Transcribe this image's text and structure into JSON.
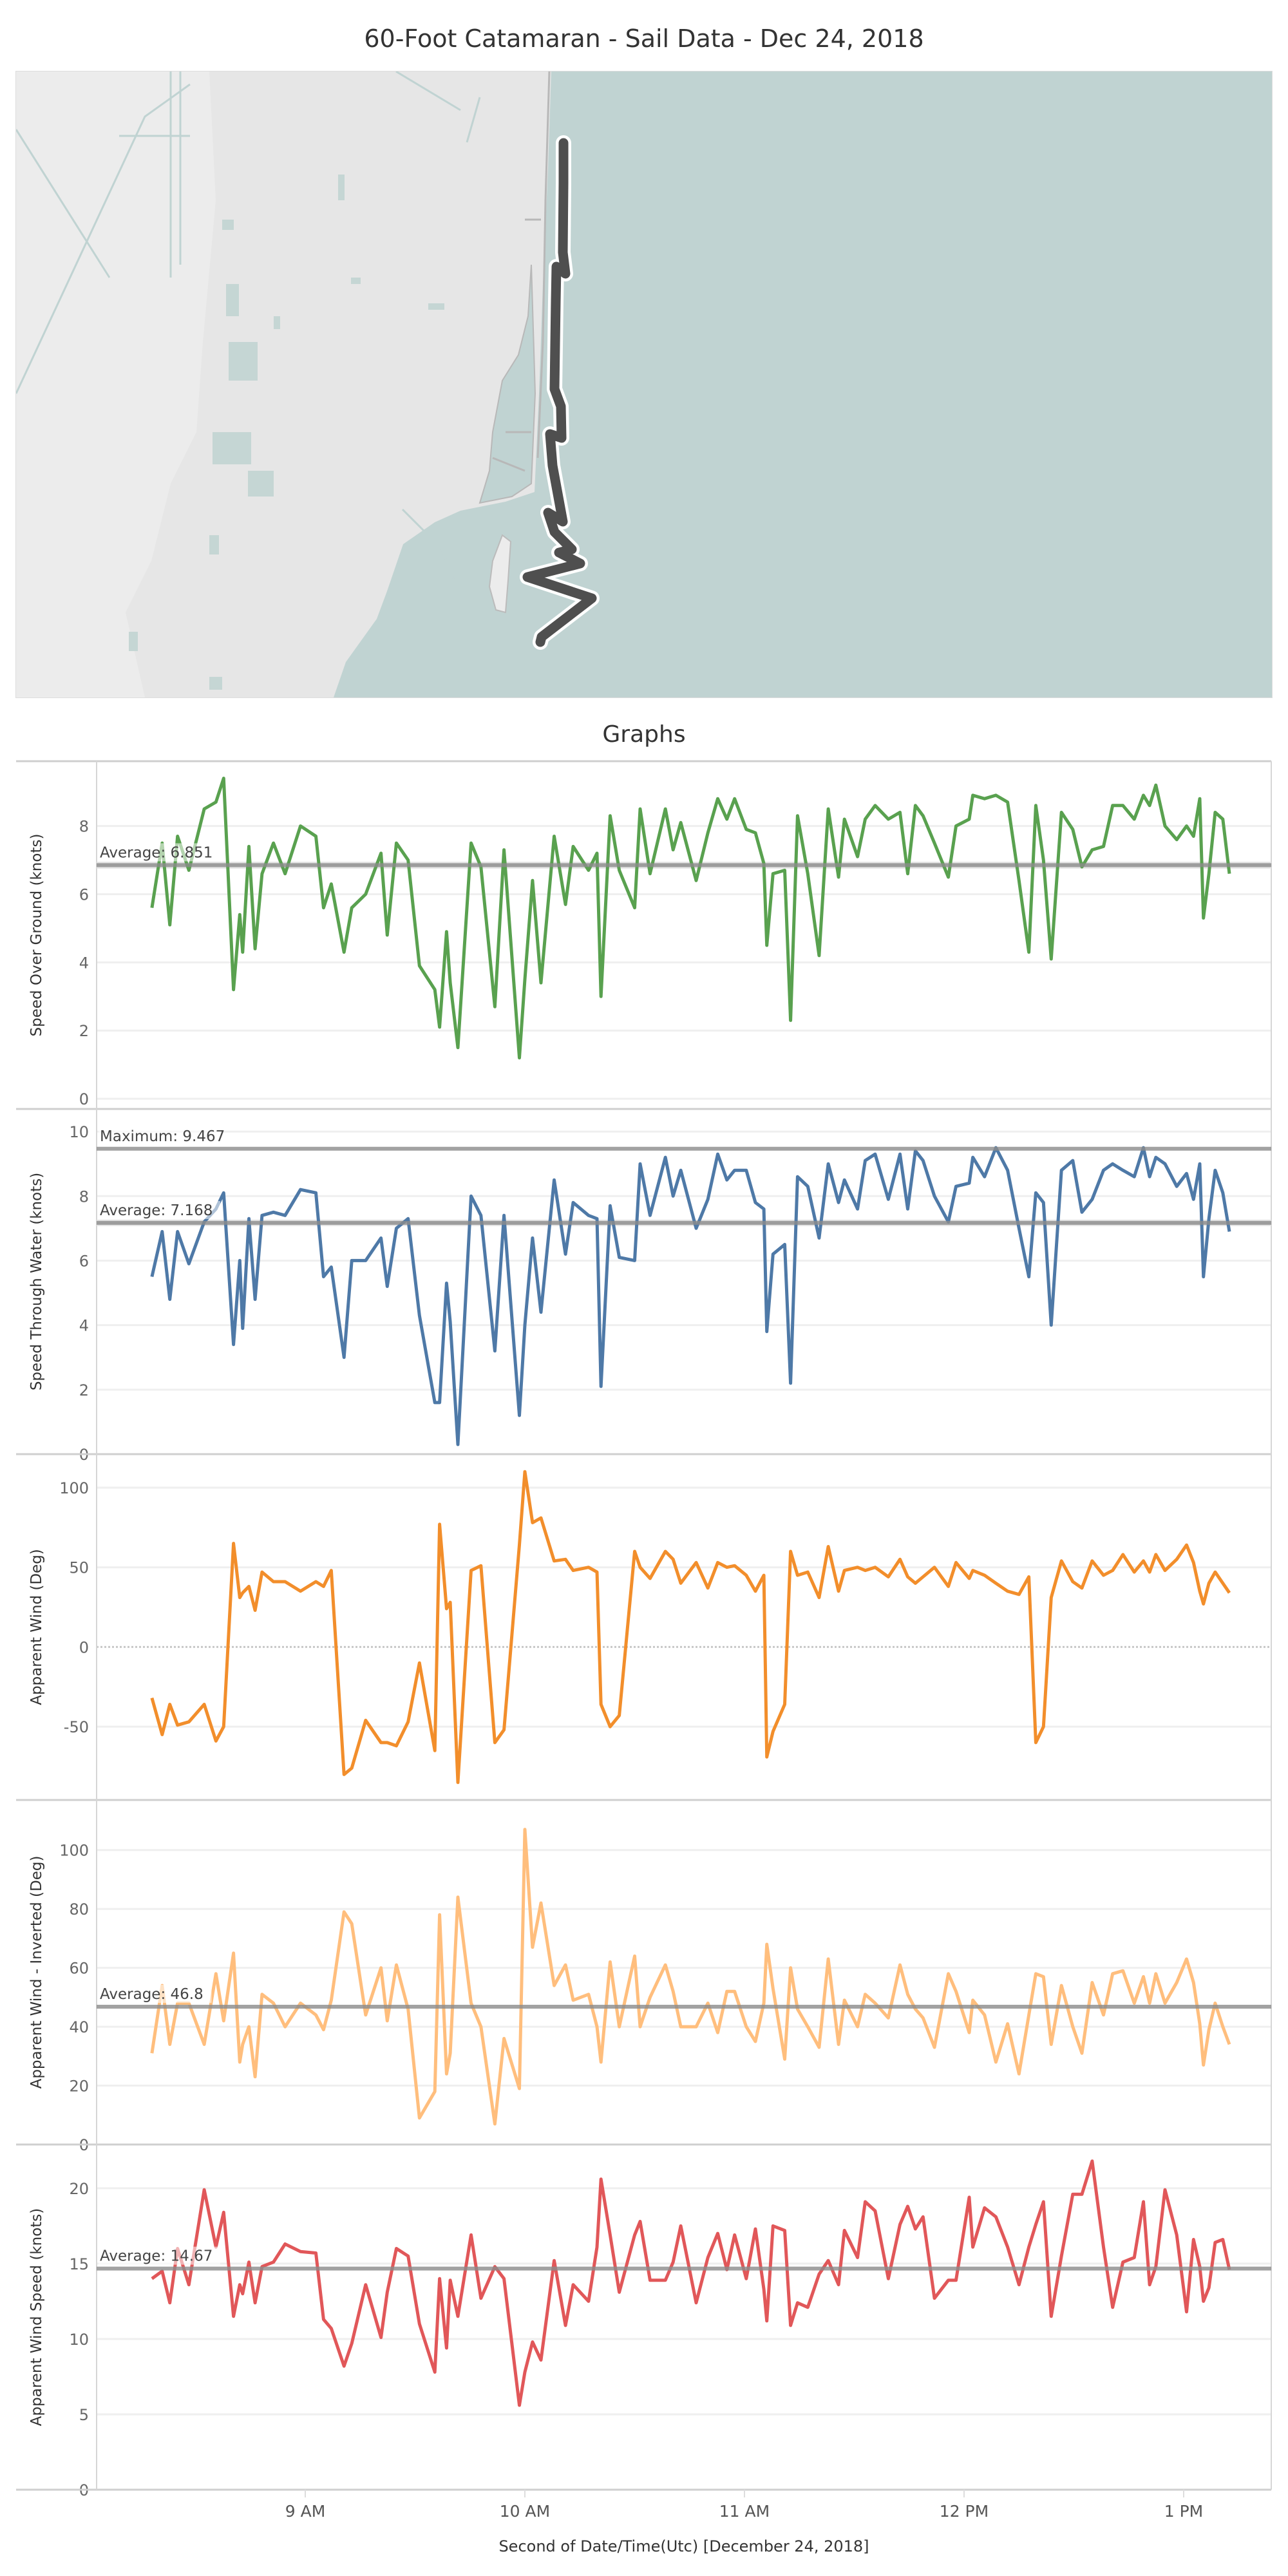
{
  "title": "60-Foot Catamaran - Sail Data - Dec 24, 2018",
  "section_title": "Graphs",
  "map": {
    "track_color": "#4f4f4f",
    "water_color": "#c0d3d2",
    "land_color": "#e6e6e6"
  },
  "x_axis": {
    "title": "Second of Date/Time(Utc) [December 24, 2018]",
    "ticks": [
      {
        "label": "9 AM",
        "minute": 60
      },
      {
        "label": "10 AM",
        "minute": 120
      },
      {
        "label": "11 AM",
        "minute": 180
      },
      {
        "label": "12 PM",
        "minute": 240
      },
      {
        "label": "1 PM",
        "minute": 300
      }
    ],
    "origin": "minutes after 8:00 AM",
    "range": [
      0,
      320
    ]
  },
  "chart_data": [
    {
      "type": "line",
      "ylabel": "Speed Over Ground (knots)",
      "color": "#59a14f",
      "ylim": [
        -0.3,
        9.9
      ],
      "yticks": [
        0,
        2,
        4,
        6,
        8
      ],
      "reference_lines": [
        {
          "label": "Average: 6.851",
          "value": 6.851,
          "band": [
            6.75,
            6.95
          ]
        }
      ],
      "x": [
        18.1,
        20.9,
        23.0,
        25.1,
        28.2,
        32.4,
        35.6,
        37.7,
        40.4,
        42.1,
        42.9,
        44.6,
        46.3,
        48.2,
        51.3,
        54.5,
        58.7,
        62.9,
        65.0,
        67.1,
        70.6,
        72.7,
        76.5,
        80.7,
        82.4,
        84.9,
        88.1,
        91.2,
        95.4,
        96.7,
        98.6,
        99.6,
        101.7,
        105.3,
        108.0,
        111.8,
        114.3,
        118.5,
        120.0,
        122.1,
        124.4,
        128.0,
        131.1,
        133.2,
        137.4,
        139.7,
        140.8,
        143.3,
        145.8,
        150.0,
        151.5,
        154.2,
        158.4,
        160.5,
        162.6,
        166.8,
        170.0,
        172.7,
        175.2,
        177.3,
        180.5,
        183.0,
        185.3,
        186.1,
        187.8,
        191.0,
        192.6,
        194.5,
        197.3,
        200.4,
        202.9,
        205.7,
        207.3,
        210.9,
        213.0,
        215.7,
        219.3,
        222.5,
        224.6,
        226.7,
        228.8,
        231.9,
        235.7,
        237.8,
        241.4,
        242.4,
        245.6,
        248.7,
        251.9,
        255.0,
        257.7,
        259.6,
        261.7,
        263.8,
        266.6,
        269.7,
        272.2,
        275.0,
        278.1,
        280.6,
        283.4,
        286.5,
        289.0,
        290.7,
        292.4,
        294.9,
        298.1,
        300.8,
        302.7,
        304.4,
        305.4,
        306.9,
        308.6,
        310.7,
        312.5
      ],
      "values": [
        5.6,
        7.5,
        5.1,
        7.7,
        6.7,
        8.5,
        8.7,
        9.4,
        3.2,
        5.4,
        4.3,
        7.4,
        4.4,
        6.6,
        7.5,
        6.6,
        8.0,
        7.7,
        5.6,
        6.3,
        4.3,
        5.6,
        6.0,
        7.2,
        4.8,
        7.5,
        7.0,
        3.9,
        3.2,
        2.1,
        4.9,
        3.4,
        1.5,
        7.5,
        6.8,
        2.7,
        7.3,
        1.2,
        3.5,
        6.4,
        3.4,
        7.7,
        5.7,
        7.4,
        6.7,
        7.2,
        3.0,
        8.3,
        6.7,
        5.6,
        8.5,
        6.6,
        8.5,
        7.3,
        8.1,
        6.4,
        7.8,
        8.8,
        8.2,
        8.8,
        7.9,
        7.8,
        6.9,
        4.5,
        6.6,
        6.7,
        2.3,
        8.3,
        6.6,
        4.2,
        8.5,
        6.5,
        8.2,
        7.1,
        8.2,
        8.6,
        8.2,
        8.4,
        6.6,
        8.6,
        8.3,
        7.5,
        6.5,
        8.0,
        8.2,
        8.9,
        8.8,
        8.9,
        8.7,
        6.4,
        4.3,
        8.6,
        7.0,
        4.1,
        8.4,
        7.9,
        6.8,
        7.3,
        7.4,
        8.6,
        8.6,
        8.2,
        8.9,
        8.6,
        9.2,
        8.0,
        7.6,
        8.0,
        7.7,
        8.8,
        5.3,
        6.6,
        8.4,
        8.2,
        6.6
      ]
    },
    {
      "type": "line",
      "ylabel": "Speed Through Water (knots)",
      "color": "#4e79a7",
      "ylim": [
        0,
        10.7
      ],
      "yticks": [
        0,
        2,
        4,
        6,
        8,
        10
      ],
      "reference_lines": [
        {
          "label": "Maximum: 9.467",
          "value": 9.467
        },
        {
          "label": "Average: 7.168",
          "value": 7.168,
          "band": [
            7.07,
            7.27
          ]
        }
      ],
      "x": [
        18.1,
        20.9,
        23.0,
        25.1,
        28.2,
        32.4,
        35.6,
        37.7,
        40.4,
        42.1,
        42.9,
        44.6,
        46.3,
        48.2,
        51.3,
        54.5,
        58.7,
        62.9,
        65.0,
        67.1,
        70.6,
        72.7,
        76.5,
        80.7,
        82.4,
        84.9,
        88.1,
        91.2,
        95.4,
        96.7,
        98.6,
        99.6,
        101.7,
        105.3,
        108.0,
        111.8,
        114.3,
        118.5,
        120.0,
        122.1,
        124.4,
        128.0,
        131.1,
        133.2,
        137.4,
        139.7,
        140.8,
        143.3,
        145.8,
        150.0,
        151.5,
        154.2,
        158.4,
        160.5,
        162.6,
        166.8,
        170.0,
        172.7,
        175.2,
        177.3,
        180.5,
        183.0,
        185.3,
        186.1,
        187.8,
        191.0,
        192.6,
        194.5,
        197.3,
        200.4,
        202.9,
        205.7,
        207.3,
        210.9,
        213.0,
        215.7,
        219.3,
        222.5,
        224.6,
        226.7,
        228.8,
        231.9,
        235.7,
        237.8,
        241.4,
        242.4,
        245.6,
        248.7,
        251.9,
        255.0,
        257.7,
        259.6,
        261.7,
        263.8,
        266.6,
        269.7,
        272.2,
        275.0,
        278.1,
        280.6,
        283.4,
        286.5,
        289.0,
        290.7,
        292.4,
        294.9,
        298.1,
        300.8,
        302.7,
        304.4,
        305.4,
        306.9,
        308.6,
        310.7,
        312.5
      ],
      "values": [
        5.5,
        6.9,
        4.8,
        6.9,
        5.9,
        7.2,
        7.6,
        8.1,
        3.4,
        6.0,
        3.9,
        7.3,
        4.8,
        7.4,
        7.5,
        7.4,
        8.2,
        8.1,
        5.5,
        5.8,
        3.0,
        6.0,
        6.0,
        6.7,
        5.2,
        7.0,
        7.3,
        4.3,
        1.6,
        1.6,
        5.3,
        4.1,
        0.3,
        8.0,
        7.4,
        3.2,
        7.4,
        1.2,
        4.0,
        6.7,
        4.4,
        8.5,
        6.2,
        7.8,
        7.4,
        7.3,
        2.1,
        7.7,
        6.1,
        6.0,
        9.0,
        7.4,
        9.2,
        8.0,
        8.8,
        7.0,
        7.9,
        9.3,
        8.5,
        8.8,
        8.8,
        7.8,
        7.6,
        3.8,
        6.2,
        6.5,
        2.2,
        8.6,
        8.3,
        6.7,
        9.0,
        7.8,
        8.5,
        7.6,
        9.1,
        9.3,
        7.9,
        9.3,
        7.6,
        9.4,
        9.1,
        8.0,
        7.2,
        8.3,
        8.4,
        9.2,
        8.6,
        9.5,
        8.8,
        7.0,
        5.5,
        8.1,
        7.8,
        4.0,
        8.8,
        9.1,
        7.5,
        7.9,
        8.8,
        9.0,
        8.8,
        8.6,
        9.5,
        8.6,
        9.2,
        9.0,
        8.3,
        8.7,
        7.9,
        9.0,
        5.5,
        7.3,
        8.8,
        8.1,
        6.9
      ]
    },
    {
      "type": "line",
      "ylabel": "Apparent Wind (Deg)",
      "color": "#f28e2b",
      "ylim": [
        -96,
        121
      ],
      "yticks": [
        -50,
        0,
        50,
        100
      ],
      "zero_line": "dotted",
      "reference_lines": [],
      "x": [
        18.1,
        20.9,
        23.0,
        25.1,
        28.2,
        32.4,
        35.6,
        37.7,
        40.4,
        42.1,
        42.9,
        44.6,
        46.3,
        48.2,
        51.3,
        54.5,
        58.7,
        62.9,
        65.0,
        67.1,
        70.6,
        72.7,
        76.5,
        80.7,
        82.4,
        84.9,
        88.1,
        91.2,
        95.4,
        96.7,
        98.6,
        99.6,
        101.7,
        105.3,
        108.0,
        111.8,
        114.3,
        118.5,
        120.0,
        122.1,
        124.4,
        128.0,
        131.1,
        133.2,
        137.4,
        139.7,
        140.8,
        143.3,
        145.8,
        150.0,
        151.5,
        154.2,
        158.4,
        160.5,
        162.6,
        166.8,
        170.0,
        172.7,
        175.2,
        177.3,
        180.5,
        183.0,
        185.3,
        186.1,
        187.8,
        191.0,
        192.6,
        194.5,
        197.3,
        200.4,
        202.9,
        205.7,
        207.3,
        210.9,
        213.0,
        215.7,
        219.3,
        222.5,
        224.6,
        226.7,
        228.8,
        231.9,
        235.7,
        237.8,
        241.4,
        242.4,
        245.6,
        248.7,
        251.9,
        255.0,
        257.7,
        259.6,
        261.7,
        263.8,
        266.6,
        269.7,
        272.2,
        275.0,
        278.1,
        280.6,
        283.4,
        286.5,
        289.0,
        290.7,
        292.4,
        294.9,
        298.1,
        300.8,
        302.7,
        304.4,
        305.4,
        306.9,
        308.6,
        310.7,
        312.5
      ],
      "values": [
        -32,
        -55,
        -36,
        -49,
        -47,
        -36,
        -59,
        -50,
        65,
        31,
        34,
        38,
        23,
        47,
        41,
        41,
        35,
        41,
        38,
        48,
        -80,
        -76,
        -46,
        -60,
        -60,
        -62,
        -47,
        -10,
        -65,
        77,
        24,
        28,
        -85,
        48,
        51,
        -60,
        -52,
        64,
        110,
        78,
        81,
        54,
        55,
        48,
        50,
        47,
        -36,
        -50,
        -43,
        60,
        50,
        43,
        60,
        55,
        40,
        53,
        37,
        53,
        50,
        51,
        45,
        35,
        45,
        -69,
        -53,
        -36,
        60,
        45,
        47,
        31,
        63,
        35,
        48,
        50,
        48,
        50,
        44,
        55,
        44,
        40,
        44,
        50,
        38,
        53,
        43,
        48,
        45,
        40,
        35,
        33,
        44,
        -60,
        -50,
        31,
        54,
        41,
        37,
        54,
        45,
        48,
        58,
        47,
        54,
        47,
        58,
        48,
        55,
        64,
        53,
        35,
        27,
        40,
        47,
        40,
        34
      ]
    },
    {
      "type": "line",
      "ylabel": "Apparent Wind - Inverted (Deg)",
      "color": "#ffbe7d",
      "ylim": [
        0,
        117
      ],
      "yticks": [
        0,
        20,
        40,
        60,
        80,
        100
      ],
      "reference_lines": [
        {
          "label": "Average: 46.8",
          "value": 46.8
        }
      ],
      "x": [
        18.1,
        20.9,
        23.0,
        25.1,
        28.2,
        32.4,
        35.6,
        37.7,
        40.4,
        42.1,
        42.9,
        44.6,
        46.3,
        48.2,
        51.3,
        54.5,
        58.7,
        62.9,
        65.0,
        67.1,
        70.6,
        72.7,
        76.5,
        80.7,
        82.4,
        84.9,
        88.1,
        91.2,
        95.4,
        96.7,
        98.6,
        99.6,
        101.7,
        105.3,
        108.0,
        111.8,
        114.3,
        118.5,
        120.0,
        122.1,
        124.4,
        128.0,
        131.1,
        133.2,
        137.4,
        139.7,
        140.8,
        143.3,
        145.8,
        150.0,
        151.5,
        154.2,
        158.4,
        160.5,
        162.6,
        166.8,
        170.0,
        172.7,
        175.2,
        177.3,
        180.5,
        183.0,
        185.3,
        186.1,
        187.8,
        191.0,
        192.6,
        194.5,
        197.3,
        200.4,
        202.9,
        205.7,
        207.3,
        210.9,
        213.0,
        215.7,
        219.3,
        222.5,
        224.6,
        226.7,
        228.8,
        231.9,
        235.7,
        237.8,
        241.4,
        242.4,
        245.6,
        248.7,
        251.9,
        255.0,
        257.7,
        259.6,
        261.7,
        263.8,
        266.6,
        269.7,
        272.2,
        275.0,
        278.1,
        280.6,
        283.4,
        286.5,
        289.0,
        290.7,
        292.4,
        294.9,
        298.1,
        300.8,
        302.7,
        304.4,
        305.4,
        306.9,
        308.6,
        310.7,
        312.5
      ],
      "values": [
        31,
        54,
        34,
        48,
        48,
        34,
        58,
        42,
        65,
        28,
        34,
        40,
        23,
        51,
        48,
        40,
        48,
        44,
        39,
        49,
        79,
        75,
        44,
        60,
        42,
        61,
        46,
        9,
        18,
        78,
        24,
        31,
        84,
        48,
        40,
        7,
        36,
        19,
        107,
        67,
        82,
        54,
        61,
        49,
        51,
        40,
        28,
        62,
        40,
        64,
        40,
        50,
        61,
        52,
        40,
        40,
        48,
        38,
        52,
        52,
        40,
        35,
        48,
        68,
        53,
        29,
        60,
        46,
        40,
        33,
        63,
        34,
        49,
        40,
        51,
        48,
        43,
        61,
        51,
        46,
        43,
        33,
        58,
        52,
        38,
        49,
        44,
        28,
        41,
        24,
        44,
        58,
        57,
        34,
        54,
        40,
        31,
        55,
        44,
        58,
        59,
        48,
        57,
        48,
        58,
        48,
        55,
        63,
        55,
        41,
        27,
        39,
        48,
        40,
        34
      ]
    },
    {
      "type": "line",
      "ylabel": "Apparent Wind Speed (knots)",
      "color": "#e15759",
      "ylim": [
        0,
        22.9
      ],
      "yticks": [
        0,
        5,
        10,
        15,
        20
      ],
      "reference_lines": [
        {
          "label": "Average: 14.67",
          "value": 14.67
        }
      ],
      "x": [
        18.1,
        20.9,
        23.0,
        25.1,
        28.2,
        32.4,
        35.6,
        37.7,
        40.4,
        42.1,
        42.9,
        44.6,
        46.3,
        48.2,
        51.3,
        54.5,
        58.7,
        62.9,
        65.0,
        67.1,
        70.6,
        72.7,
        76.5,
        80.7,
        82.4,
        84.9,
        88.1,
        91.2,
        95.4,
        96.7,
        98.6,
        99.6,
        101.7,
        105.3,
        108.0,
        111.8,
        114.3,
        118.5,
        120.0,
        122.1,
        124.4,
        128.0,
        131.1,
        133.2,
        137.4,
        139.7,
        140.8,
        143.3,
        145.8,
        150.0,
        151.5,
        154.2,
        158.4,
        160.5,
        162.6,
        166.8,
        170.0,
        172.7,
        175.2,
        177.3,
        180.5,
        183.0,
        185.3,
        186.1,
        187.8,
        191.0,
        192.6,
        194.5,
        197.3,
        200.4,
        202.9,
        205.7,
        207.3,
        210.9,
        213.0,
        215.7,
        219.3,
        222.5,
        224.6,
        226.7,
        228.8,
        231.9,
        235.7,
        237.8,
        241.4,
        242.4,
        245.6,
        248.7,
        251.9,
        255.0,
        257.7,
        259.6,
        261.7,
        263.8,
        266.6,
        269.7,
        272.2,
        275.0,
        278.1,
        280.6,
        283.4,
        286.5,
        289.0,
        290.7,
        292.4,
        294.9,
        298.1,
        300.8,
        302.7,
        304.4,
        305.4,
        306.9,
        308.6,
        310.7,
        312.5
      ],
      "values": [
        14.0,
        14.5,
        12.4,
        16.0,
        13.6,
        19.9,
        16.1,
        18.4,
        11.5,
        13.6,
        13.0,
        15.1,
        12.4,
        14.8,
        15.1,
        16.3,
        15.8,
        15.7,
        11.3,
        10.7,
        8.2,
        9.7,
        13.6,
        10.1,
        13.1,
        16.0,
        15.5,
        11.0,
        7.8,
        14.0,
        9.4,
        13.9,
        11.5,
        16.9,
        12.7,
        14.8,
        14.0,
        5.6,
        7.8,
        9.8,
        8.6,
        15.2,
        10.9,
        13.6,
        12.5,
        16.1,
        20.6,
        16.9,
        13.1,
        16.9,
        17.8,
        13.9,
        13.9,
        15.1,
        17.5,
        12.4,
        15.4,
        17.0,
        14.6,
        16.9,
        14.0,
        17.3,
        13.3,
        11.2,
        17.5,
        17.2,
        10.9,
        12.4,
        12.1,
        14.3,
        15.2,
        13.6,
        17.2,
        15.4,
        19.1,
        18.5,
        14.0,
        17.6,
        18.8,
        17.3,
        18.1,
        12.7,
        13.9,
        13.9,
        19.4,
        16.1,
        18.7,
        18.1,
        16.1,
        13.6,
        16.1,
        17.6,
        19.1,
        11.5,
        15.5,
        19.6,
        19.6,
        21.8,
        16.1,
        12.1,
        15.1,
        15.4,
        19.1,
        13.6,
        14.8,
        19.9,
        16.9,
        11.8,
        16.6,
        14.8,
        12.5,
        13.4,
        16.4,
        16.6,
        14.6
      ]
    }
  ]
}
